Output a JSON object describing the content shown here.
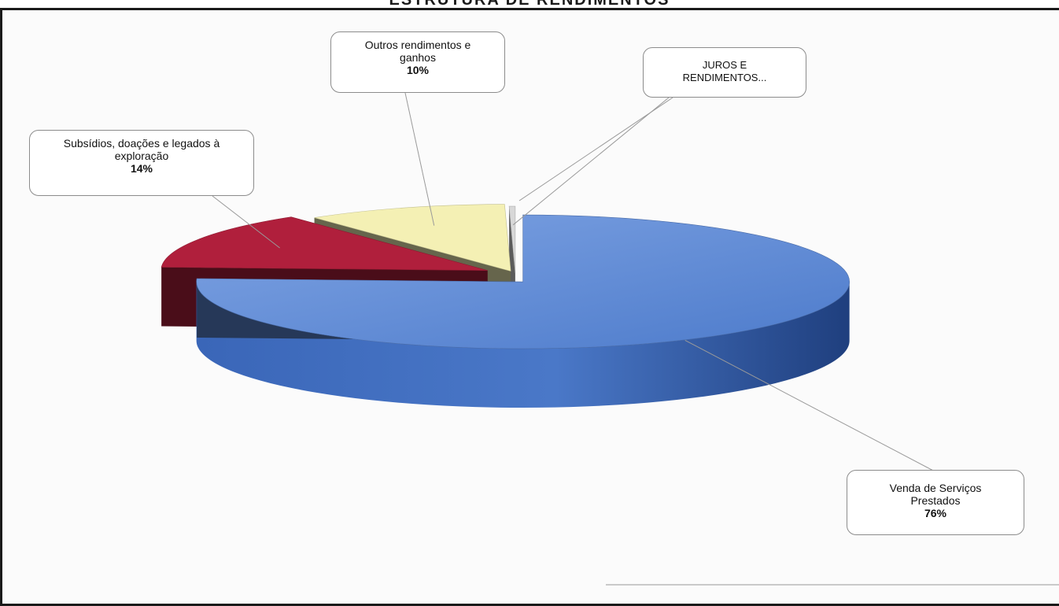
{
  "header": {
    "title": "ESTRUTURA DE RENDIMENTOS"
  },
  "chart_data": {
    "type": "pie",
    "style": "3d-exploded",
    "title": "ESTRUTURA DE RENDIMENTOS",
    "legend": "none",
    "slices": [
      {
        "label": "Venda de Serviços Prestados",
        "value": 76,
        "pct_label": "76%",
        "color": "#5b86d1"
      },
      {
        "label": "Subsídios, doações e legados à exploração",
        "value": 14,
        "pct_label": "14%",
        "color": "#b01f3c"
      },
      {
        "label": "Outros rendimentos e ganhos",
        "value": 10,
        "pct_label": "10%",
        "color": "#f4f0b4"
      },
      {
        "label": "JUROS E RENDIMENTOS...",
        "value": 0.3,
        "pct_label": "",
        "color": "#d8d8d8"
      }
    ]
  },
  "callouts": {
    "venda": {
      "line1": "Venda de Serviços",
      "line2": "Prestados",
      "pct": "76%"
    },
    "subsidios": {
      "line1": "Subsídios, doações e legados à",
      "line2": "exploração",
      "pct": "14%"
    },
    "outros": {
      "line1": "Outros rendimentos e",
      "line2": "ganhos",
      "pct": "10%"
    },
    "juros": {
      "line1": "JUROS E",
      "line2": "RENDIMENTOS..."
    }
  }
}
